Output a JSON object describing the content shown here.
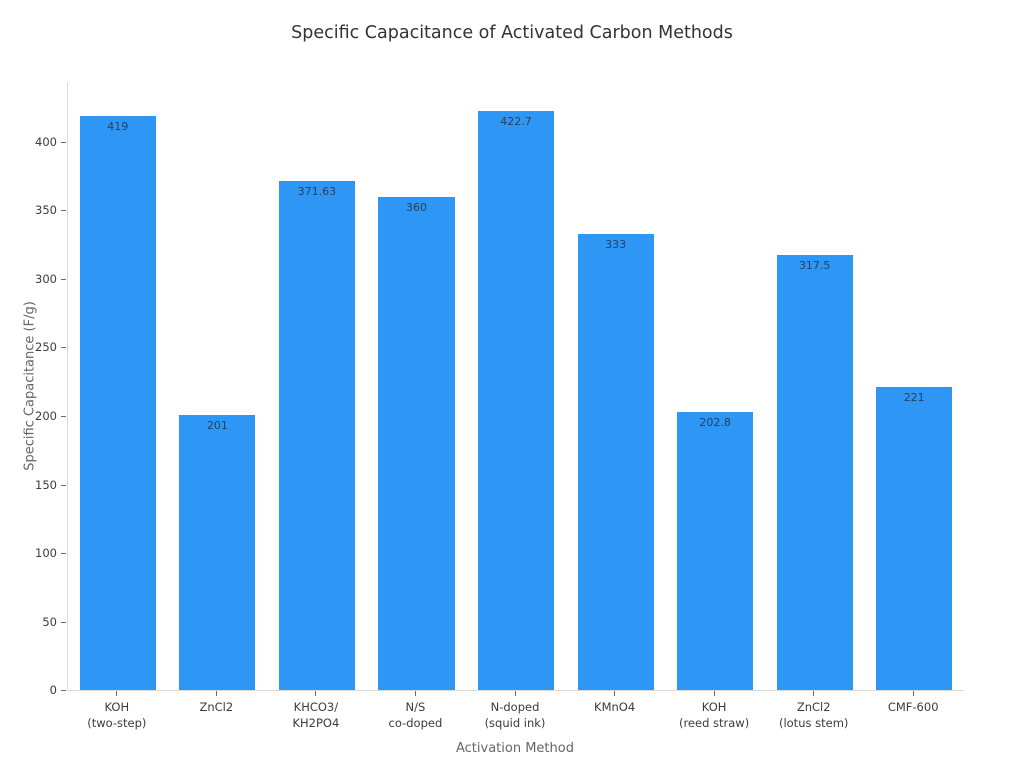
{
  "chart_data": {
    "type": "bar",
    "title": "Specific Capacitance of Activated Carbon Methods",
    "xlabel": "Activation Method",
    "ylabel": "Specific Capacitance (F/g)",
    "categories": [
      "KOH\n(two-step)",
      "ZnCl2",
      "KHCO3/\nKH2PO4",
      "N/S\nco-doped",
      "N-doped\n(squid ink)",
      "KMnO4",
      "KOH\n(reed straw)",
      "ZnCl2\n(lotus stem)",
      "CMF-600"
    ],
    "values": [
      419,
      201,
      371.63,
      360,
      422.7,
      333,
      202.8,
      317.5,
      221
    ],
    "value_labels": [
      "419",
      "201",
      "371.63",
      "360",
      "422.7",
      "333",
      "202.8",
      "317.5",
      "221"
    ],
    "yticks": [
      0,
      50,
      100,
      150,
      200,
      250,
      300,
      350,
      400
    ],
    "ylim": [
      0,
      443
    ],
    "grid": false,
    "legend": "none",
    "value_label_position": "inside-top"
  },
  "colors": {
    "bar": "#2e96f5",
    "title_text": "#333333",
    "tick_text": "#3b3b3b",
    "axis_title_text": "#666666",
    "value_label_text": "#2a3f5f",
    "axis_line": "#d9d9d9",
    "tick_mark": "#6b6b6b",
    "background": "#ffffff"
  }
}
